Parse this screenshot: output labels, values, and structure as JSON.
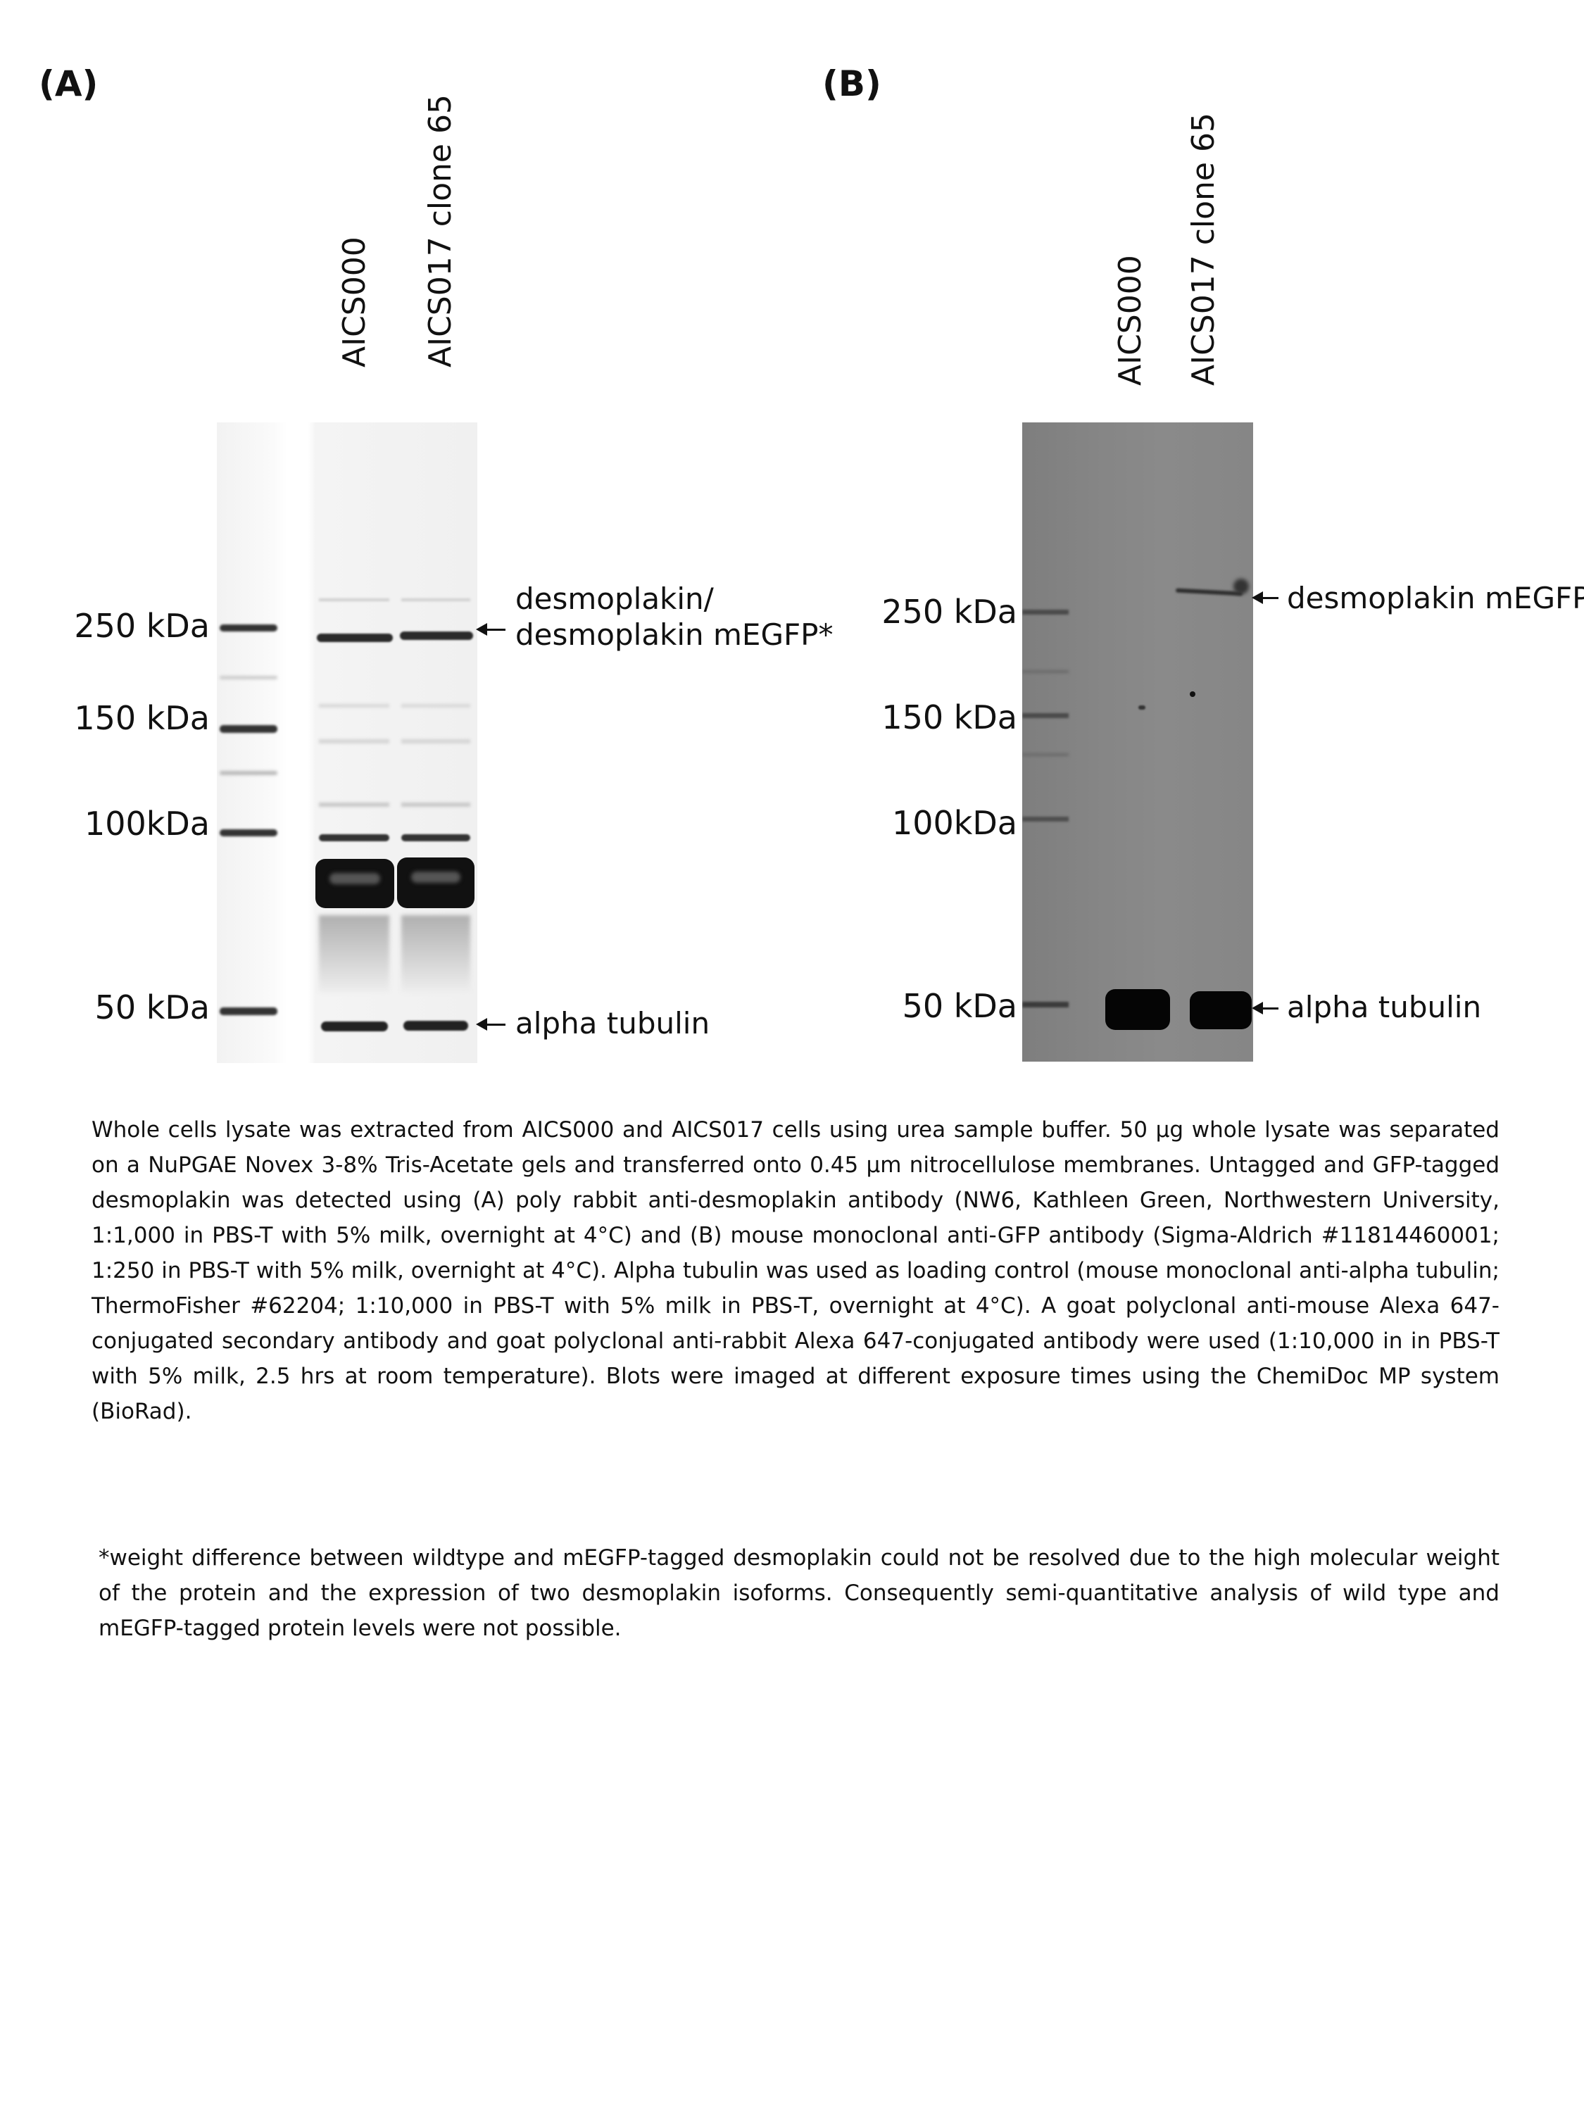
{
  "panel_a": {
    "label": "(A)",
    "lanes": [
      "AICS000",
      "AICS017 clone 65"
    ],
    "markers": [
      "250 kDa",
      "150 kDa",
      "100kDa",
      "50 kDa"
    ],
    "annotations": {
      "desmoplakin_line1": "desmoplakin/",
      "desmoplakin_line2": "desmoplakin mEGFP*",
      "tubulin": "alpha tubulin"
    }
  },
  "panel_b": {
    "label": "(B)",
    "lanes": [
      "AICS000",
      "AICS017 clone 65"
    ],
    "markers": [
      "250 kDa",
      "150 kDa",
      "100kDa",
      "50 kDa"
    ],
    "annotations": {
      "desmoplakin": "desmoplakin mEGFP",
      "tubulin": "alpha tubulin"
    }
  },
  "caption": "Whole cells lysate was extracted from AICS000 and AICS017 cells using urea sample buffer. 50 µg whole lysate was separated on a NuPGAE Novex 3-8% Tris-Acetate gels and transferred onto 0.45 µm nitrocellulose membranes. Untagged and GFP-tagged desmoplakin was detected using (A) poly rabbit anti-desmoplakin antibody (NW6, Kathleen Green, Northwestern University, 1:1,000 in PBS-T with 5% milk, overnight at 4°C) and (B) mouse monoclonal anti-GFP antibody (Sigma-Aldrich #11814460001; 1:250 in PBS-T with 5% milk, overnight at 4°C). Alpha tubulin was used as loading control (mouse monoclonal anti-alpha tubulin; ThermoFisher #62204; 1:10,000 in PBS-T with 5% milk in PBS-T, overnight at 4°C). A goat polyclonal anti-mouse Alexa 647-conjugated secondary antibody and goat polyclonal anti-rabbit Alexa 647-conjugated antibody were used (1:10,000 in in PBS-T with 5% milk, 2.5 hrs at room temperature). Blots were imaged at different exposure times using the ChemiDoc MP system (BioRad).",
  "footnote": "*weight difference between wildtype and mEGFP-tagged desmoplakin could not be resolved due to the high molecular weight of the protein and the expression of two desmoplakin isoforms. Consequently semi-quantitative analysis of wild type and mEGFP-tagged protein levels were not possible."
}
